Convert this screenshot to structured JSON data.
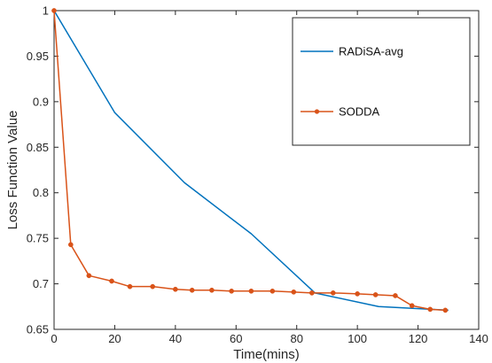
{
  "chart_data": {
    "type": "line",
    "title": "",
    "xlabel": "Time(mins)",
    "ylabel": "Loss Function Value",
    "xlim": [
      0,
      140
    ],
    "ylim": [
      0.65,
      1.0
    ],
    "x_ticks": [
      0,
      20,
      40,
      60,
      80,
      100,
      120,
      140
    ],
    "x_tick_labels": [
      "0",
      "20",
      "40",
      "60",
      "80",
      "100",
      "120",
      "140"
    ],
    "y_ticks": [
      0.65,
      0.7,
      0.75,
      0.8,
      0.85,
      0.9,
      0.95,
      1.0
    ],
    "y_tick_labels": [
      "0.65",
      "0.7",
      "0.75",
      "0.8",
      "0.85",
      "0.9",
      "0.95",
      "1"
    ],
    "grid": false,
    "legend_position": "top-right",
    "series": [
      {
        "name": "RADiSA-avg",
        "color": "#0072BD",
        "marker": "none",
        "x": [
          0,
          20,
          43,
          65,
          86,
          107,
          130
        ],
        "y": [
          1.0,
          0.888,
          0.811,
          0.755,
          0.69,
          0.675,
          0.671
        ]
      },
      {
        "name": "SODDA",
        "color": "#D95319",
        "marker": "dot",
        "x": [
          0,
          5.5,
          11.5,
          19,
          25,
          32.5,
          40,
          45.5,
          52,
          58.5,
          65,
          72,
          79,
          85,
          92,
          100,
          106,
          112.5,
          118,
          124,
          129
        ],
        "y": [
          1.0,
          0.743,
          0.709,
          0.703,
          0.697,
          0.697,
          0.694,
          0.693,
          0.693,
          0.692,
          0.692,
          0.692,
          0.691,
          0.69,
          0.69,
          0.689,
          0.688,
          0.687,
          0.676,
          0.672,
          0.671
        ]
      }
    ]
  }
}
